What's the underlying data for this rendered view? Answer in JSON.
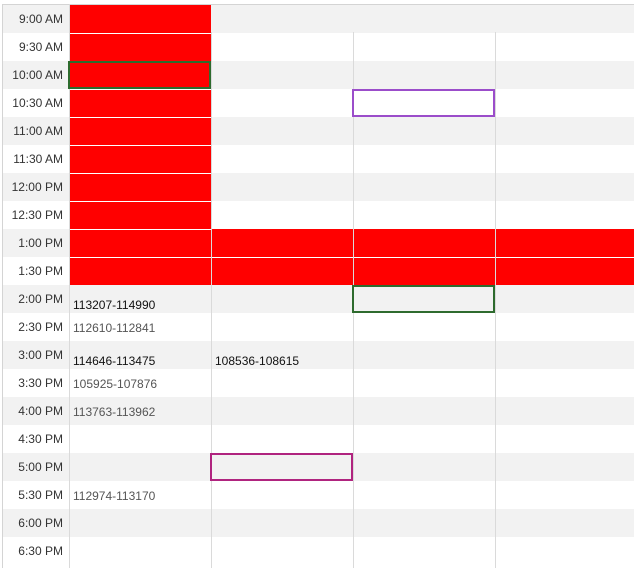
{
  "times": [
    "9:00 AM",
    "9:30 AM",
    "10:00 AM",
    "10:30 AM",
    "11:00 AM",
    "11:30 AM",
    "12:00 PM",
    "12:30 PM",
    "1:00 PM",
    "1:30 PM",
    "2:00 PM",
    "2:30 PM",
    "3:00 PM",
    "3:30 PM",
    "4:00 PM",
    "4:30 PM",
    "5:00 PM",
    "5:30 PM",
    "6:00 PM",
    "6:30 PM"
  ],
  "colors": {
    "busy": "#ff0000",
    "green_outline": "#2e6b2e",
    "purple_outline": "#9b4dca",
    "magenta_outline": "#b0247f"
  },
  "busy_blocks": [
    {
      "column": 0,
      "from_slot": 0,
      "to_slot": 9
    },
    {
      "column": 1,
      "from_slot": 8,
      "to_slot": 9
    },
    {
      "column": 2,
      "from_slot": 8,
      "to_slot": 9
    },
    {
      "column": 3,
      "from_slot": 8,
      "to_slot": 9
    }
  ],
  "events": [
    {
      "slot": 10,
      "column": 0,
      "text": "113207-114990",
      "style": "dark"
    },
    {
      "slot": 11,
      "column": 0,
      "text": "112610-112841",
      "style": "grey"
    },
    {
      "slot": 12,
      "column": 0,
      "text": "114646-113475",
      "style": "dark"
    },
    {
      "slot": 12,
      "column": 1,
      "text": "108536-108615",
      "style": "dark"
    },
    {
      "slot": 13,
      "column": 0,
      "text": "105925-107876",
      "style": "grey"
    },
    {
      "slot": 14,
      "column": 0,
      "text": "113763-113962",
      "style": "grey"
    },
    {
      "slot": 17,
      "column": 0,
      "text": "112974-113170",
      "style": "grey"
    }
  ],
  "selections": [
    {
      "slot": 2,
      "column": 0,
      "color": "green_outline"
    },
    {
      "slot": 3,
      "column": 2,
      "color": "purple_outline"
    },
    {
      "slot": 10,
      "column": 2,
      "color": "green_outline"
    },
    {
      "slot": 16,
      "column": 1,
      "color": "magenta_outline"
    }
  ]
}
